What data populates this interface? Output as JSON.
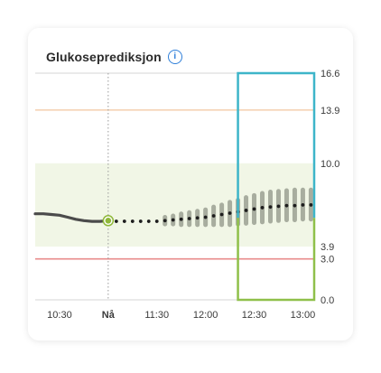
{
  "card": {
    "title": "Glukoseprediksjon"
  },
  "icons": {
    "info": "info-icon"
  },
  "colors": {
    "target_band": "#f1f6e6",
    "high_limit": "#f5d3b5",
    "low_limit": "#e88b8b",
    "history_line": "#4b4b4b",
    "prediction_dot": "#1d1d1d",
    "uncertainty": "#a8ad9f",
    "now_marker": "#8fb83a",
    "highlight_blue": "#3db5c9",
    "highlight_green": "#8fc04a"
  },
  "chart_data": {
    "type": "line",
    "title": "Glukoseprediksjon",
    "xlabel": "",
    "ylabel": "",
    "ylim": [
      0,
      16.6
    ],
    "y_ticks": [
      "16.6",
      "13.9",
      "10.0",
      "3.9",
      "3.0",
      "0.0"
    ],
    "x_ticks": [
      {
        "label": "10:30",
        "t": -30,
        "bold": false
      },
      {
        "label": "Nå",
        "t": 0,
        "bold": true
      },
      {
        "label": "11:30",
        "t": 30,
        "bold": false
      },
      {
        "label": "12:00",
        "t": 60,
        "bold": false
      },
      {
        "label": "12:30",
        "t": 90,
        "bold": false
      },
      {
        "label": "13:00",
        "t": 120,
        "bold": false
      }
    ],
    "x_range_minutes": [
      -45,
      127
    ],
    "target_range": [
      3.9,
      10.0
    ],
    "high_limit": 13.9,
    "low_limit": 3.0,
    "history": [
      {
        "t": -45,
        "y": 6.3
      },
      {
        "t": -40,
        "y": 6.3
      },
      {
        "t": -35,
        "y": 6.25
      },
      {
        "t": -30,
        "y": 6.2
      },
      {
        "t": -25,
        "y": 6.05
      },
      {
        "t": -20,
        "y": 5.9
      },
      {
        "t": -15,
        "y": 5.8
      },
      {
        "t": -10,
        "y": 5.75
      },
      {
        "t": -5,
        "y": 5.75
      },
      {
        "t": 0,
        "y": 5.8
      }
    ],
    "now": {
      "t": 0,
      "y": 5.8
    },
    "prediction": [
      {
        "t": 5,
        "y": 5.75,
        "lo": 5.75,
        "hi": 5.75
      },
      {
        "t": 10,
        "y": 5.75,
        "lo": 5.75,
        "hi": 5.75
      },
      {
        "t": 15,
        "y": 5.75,
        "lo": 5.75,
        "hi": 5.75
      },
      {
        "t": 20,
        "y": 5.75,
        "lo": 5.75,
        "hi": 5.75
      },
      {
        "t": 25,
        "y": 5.75,
        "lo": 5.75,
        "hi": 5.75
      },
      {
        "t": 30,
        "y": 5.75,
        "lo": 5.75,
        "hi": 5.75
      },
      {
        "t": 35,
        "y": 5.8,
        "lo": 5.55,
        "hi": 6.05
      },
      {
        "t": 40,
        "y": 5.85,
        "lo": 5.55,
        "hi": 6.15
      },
      {
        "t": 45,
        "y": 5.9,
        "lo": 5.5,
        "hi": 6.3
      },
      {
        "t": 50,
        "y": 5.95,
        "lo": 5.5,
        "hi": 6.4
      },
      {
        "t": 55,
        "y": 6.0,
        "lo": 5.5,
        "hi": 6.5
      },
      {
        "t": 60,
        "y": 6.05,
        "lo": 5.5,
        "hi": 6.6
      },
      {
        "t": 65,
        "y": 6.15,
        "lo": 5.5,
        "hi": 6.8
      },
      {
        "t": 70,
        "y": 6.25,
        "lo": 5.5,
        "hi": 6.95
      },
      {
        "t": 75,
        "y": 6.35,
        "lo": 5.5,
        "hi": 7.15
      },
      {
        "t": 80,
        "y": 6.45,
        "lo": 5.55,
        "hi": 7.3
      },
      {
        "t": 85,
        "y": 6.55,
        "lo": 5.6,
        "hi": 7.5
      },
      {
        "t": 90,
        "y": 6.65,
        "lo": 5.65,
        "hi": 7.65
      },
      {
        "t": 95,
        "y": 6.75,
        "lo": 5.7,
        "hi": 7.8
      },
      {
        "t": 100,
        "y": 6.8,
        "lo": 5.75,
        "hi": 7.9
      },
      {
        "t": 105,
        "y": 6.85,
        "lo": 5.8,
        "hi": 7.95
      },
      {
        "t": 110,
        "y": 6.9,
        "lo": 5.85,
        "hi": 8.0
      },
      {
        "t": 115,
        "y": 6.9,
        "lo": 5.85,
        "hi": 8.05
      },
      {
        "t": 120,
        "y": 6.95,
        "lo": 5.9,
        "hi": 8.05
      },
      {
        "t": 125,
        "y": 6.95,
        "lo": 5.9,
        "hi": 8.05
      }
    ],
    "highlight_window": {
      "t_start": 80,
      "t_end": 127,
      "y_split": 6.0
    },
    "grid": false
  }
}
